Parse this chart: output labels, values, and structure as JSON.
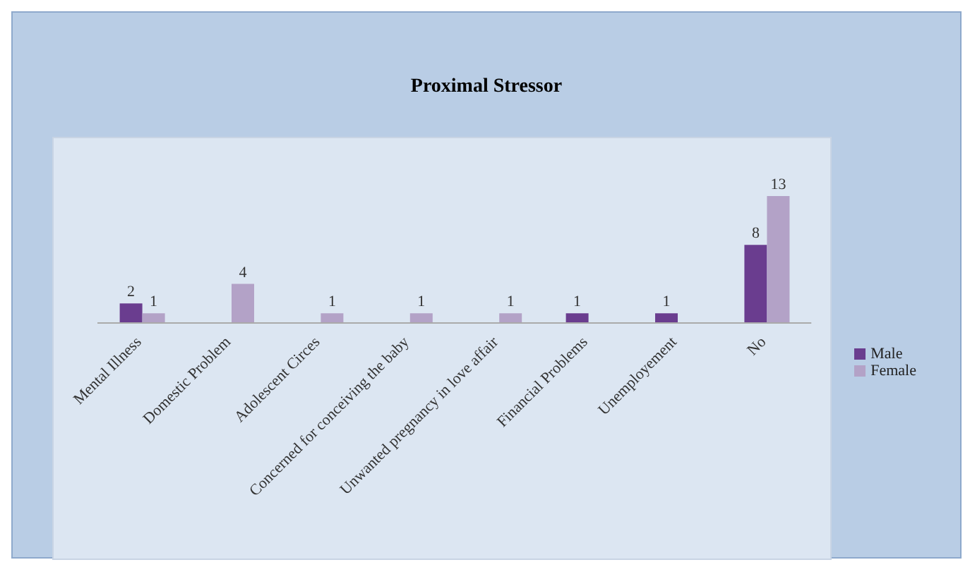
{
  "chart_data": {
    "type": "bar",
    "title": "Proximal Stressor",
    "categories": [
      "Mental Illness",
      "Domestic Problem",
      "Adolescent Circes",
      "Concerned for conceiving the baby",
      "Unwanted pregnancy in love affair",
      "Financial Problems",
      "Unemployement",
      "No"
    ],
    "series": [
      {
        "name": "Male",
        "color": "#6a3d8f",
        "values": [
          2,
          null,
          null,
          null,
          null,
          1,
          1,
          8
        ]
      },
      {
        "name": "Female",
        "color": "#b3a2c7",
        "values": [
          1,
          4,
          1,
          1,
          1,
          null,
          null,
          13
        ]
      }
    ],
    "data_labels": true,
    "legend": "right"
  }
}
